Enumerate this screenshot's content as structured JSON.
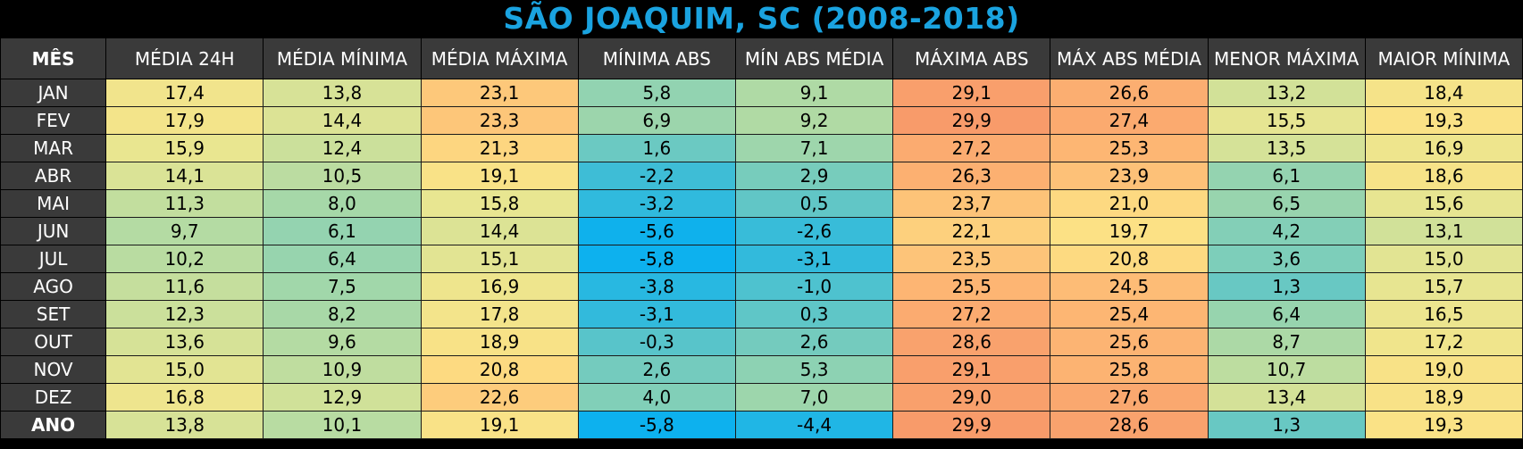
{
  "title": "SÃO JOAQUIM, SC (2008-2018)",
  "chart_data": {
    "type": "table",
    "title": "SÃO JOAQUIM, SC (2008-2018)",
    "columns": [
      "MÊS",
      "MÉDIA 24H",
      "MÉDIA MÍNIMA",
      "MÉDIA MÁXIMA",
      "MÍNIMA ABS",
      "MÍN ABS MÉDIA",
      "MÁXIMA ABS",
      "MÁX ABS MÉDIA",
      "MENOR MÁXIMA",
      "MAIOR MÍNIMA"
    ],
    "rows": [
      {
        "label": "JAN",
        "values": [
          "17,4",
          "13,8",
          "23,1",
          "5,8",
          "9,1",
          "29,1",
          "26,6",
          "13,2",
          "18,4"
        ]
      },
      {
        "label": "FEV",
        "values": [
          "17,9",
          "14,4",
          "23,3",
          "6,9",
          "9,2",
          "29,9",
          "27,4",
          "15,5",
          "19,3"
        ]
      },
      {
        "label": "MAR",
        "values": [
          "15,9",
          "12,4",
          "21,3",
          "1,6",
          "7,1",
          "27,2",
          "25,3",
          "13,5",
          "16,9"
        ]
      },
      {
        "label": "ABR",
        "values": [
          "14,1",
          "10,5",
          "19,1",
          "-2,2",
          "2,9",
          "26,3",
          "23,9",
          "6,1",
          "18,6"
        ]
      },
      {
        "label": "MAI",
        "values": [
          "11,3",
          "8,0",
          "15,8",
          "-3,2",
          "0,5",
          "23,7",
          "21,0",
          "6,5",
          "15,6"
        ]
      },
      {
        "label": "JUN",
        "values": [
          "9,7",
          "6,1",
          "14,4",
          "-5,6",
          "-2,6",
          "22,1",
          "19,7",
          "4,2",
          "13,1"
        ]
      },
      {
        "label": "JUL",
        "values": [
          "10,2",
          "6,4",
          "15,1",
          "-5,8",
          "-3,1",
          "23,5",
          "20,8",
          "3,6",
          "15,0"
        ]
      },
      {
        "label": "AGO",
        "values": [
          "11,6",
          "7,5",
          "16,9",
          "-3,8",
          "-1,0",
          "25,5",
          "24,5",
          "1,3",
          "15,7"
        ]
      },
      {
        "label": "SET",
        "values": [
          "12,3",
          "8,2",
          "17,8",
          "-3,1",
          "0,3",
          "27,2",
          "25,4",
          "6,4",
          "16,5"
        ]
      },
      {
        "label": "OUT",
        "values": [
          "13,6",
          "9,6",
          "18,9",
          "-0,3",
          "2,6",
          "28,6",
          "25,6",
          "8,7",
          "17,2"
        ]
      },
      {
        "label": "NOV",
        "values": [
          "15,0",
          "10,9",
          "20,8",
          "2,6",
          "5,3",
          "29,1",
          "25,8",
          "10,7",
          "19,0"
        ]
      },
      {
        "label": "DEZ",
        "values": [
          "16,8",
          "12,9",
          "22,6",
          "4,0",
          "7,0",
          "29,0",
          "27,6",
          "13,4",
          "18,9"
        ]
      },
      {
        "label": "ANO",
        "values": [
          "13,8",
          "10,1",
          "19,1",
          "-5,8",
          "-4,4",
          "29,9",
          "28,6",
          "1,3",
          "19,3"
        ]
      }
    ],
    "color_scale": {
      "stops": [
        "#0ab0ef",
        "#5cc5c8",
        "#a6d8a8",
        "#eae690",
        "#fde184",
        "#fdb874",
        "#f89a6a"
      ],
      "domain": [
        -6,
        0,
        8,
        16,
        20,
        25,
        30
      ]
    }
  }
}
